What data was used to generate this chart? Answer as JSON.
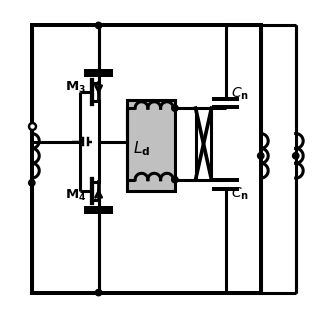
{
  "bg_color": "#ffffff",
  "line_color": "#000000",
  "gray_fill": "#c0c0c0",
  "lw": 2.2,
  "fig_size": [
    3.18,
    3.18
  ],
  "dpi": 100
}
